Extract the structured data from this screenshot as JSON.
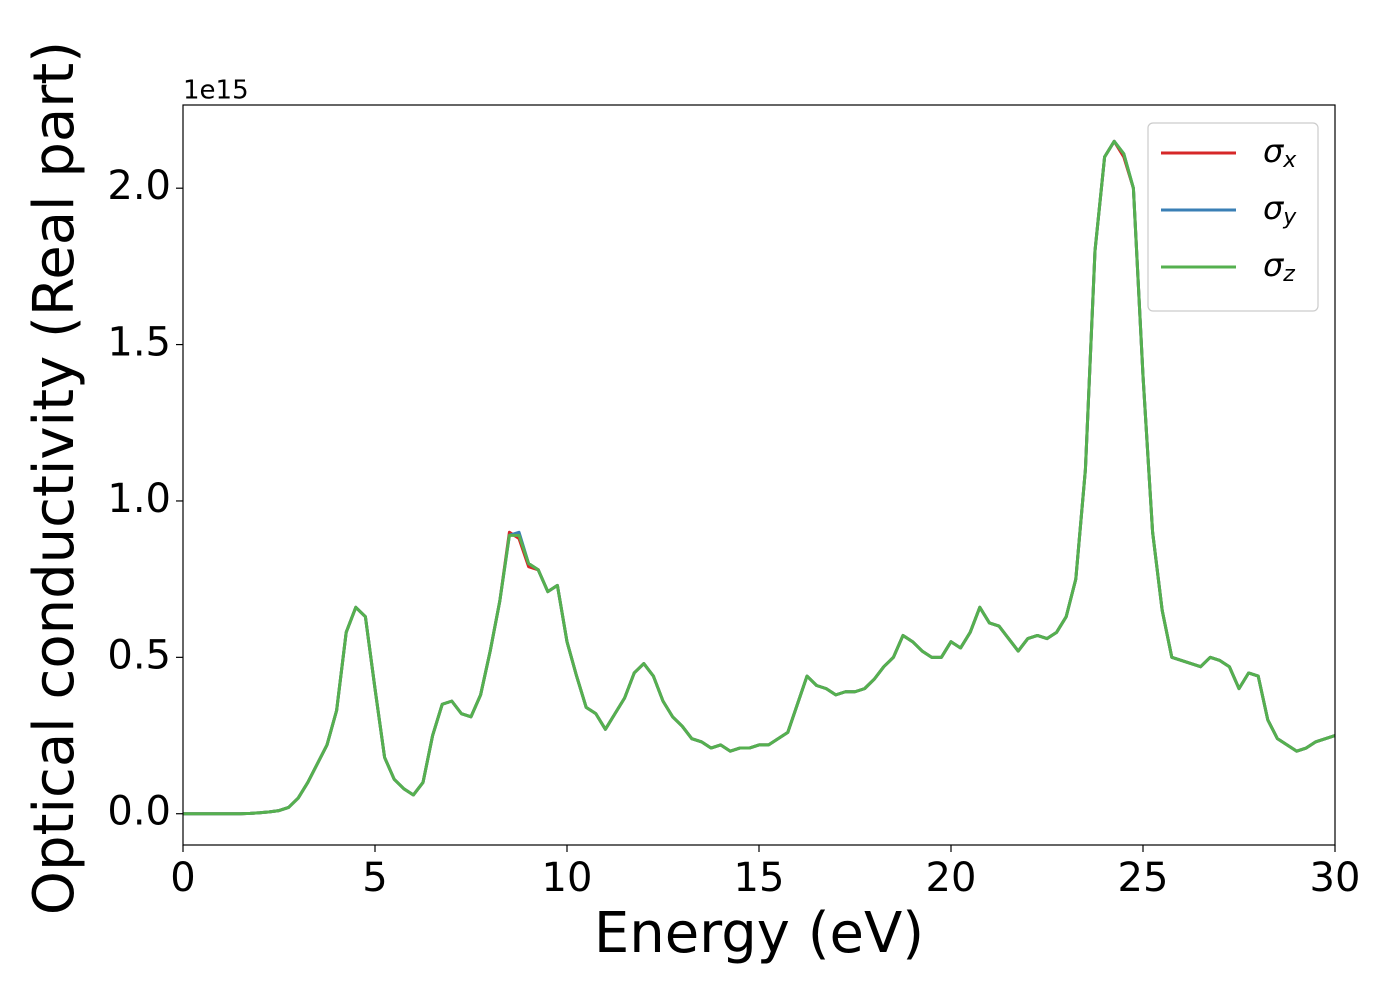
{
  "chart_data": {
    "type": "line",
    "xlabel": "Energy (eV)",
    "ylabel": "Optical conductivity (Real part)",
    "y_offset_label": "1e15",
    "x": [
      0,
      0.25,
      0.5,
      0.75,
      1,
      1.25,
      1.5,
      1.75,
      2,
      2.25,
      2.5,
      2.75,
      3,
      3.25,
      3.5,
      3.75,
      4,
      4.25,
      4.5,
      4.75,
      5,
      5.25,
      5.5,
      5.75,
      6,
      6.25,
      6.5,
      6.75,
      7,
      7.25,
      7.5,
      7.75,
      8,
      8.25,
      8.5,
      8.75,
      9,
      9.25,
      9.5,
      9.75,
      10,
      10.25,
      10.5,
      10.75,
      11,
      11.25,
      11.5,
      11.75,
      12,
      12.25,
      12.5,
      12.75,
      13,
      13.25,
      13.5,
      13.75,
      14,
      14.25,
      14.5,
      14.75,
      15,
      15.25,
      15.5,
      15.75,
      16,
      16.25,
      16.5,
      16.75,
      17,
      17.25,
      17.5,
      17.75,
      18,
      18.25,
      18.5,
      18.75,
      19,
      19.25,
      19.5,
      19.75,
      20,
      20.25,
      20.5,
      20.75,
      21,
      21.25,
      21.5,
      21.75,
      22,
      22.25,
      22.5,
      22.75,
      23,
      23.25,
      23.5,
      23.75,
      24,
      24.25,
      24.5,
      24.75,
      25,
      25.25,
      25.5,
      25.75,
      26,
      26.25,
      26.5,
      26.75,
      27,
      27.25,
      27.5,
      27.75,
      28,
      28.25,
      28.5,
      28.75,
      29,
      29.25,
      29.5,
      29.75,
      30
    ],
    "series": [
      {
        "name": "σx",
        "color": "#d62728",
        "values": [
          0,
          0,
          0,
          0,
          0,
          0,
          0,
          0.001,
          0.003,
          0.006,
          0.01,
          0.02,
          0.05,
          0.1,
          0.16,
          0.22,
          0.33,
          0.58,
          0.66,
          0.63,
          0.4,
          0.18,
          0.11,
          0.08,
          0.06,
          0.1,
          0.25,
          0.35,
          0.36,
          0.32,
          0.31,
          0.38,
          0.52,
          0.68,
          0.9,
          0.88,
          0.79,
          0.78,
          0.71,
          0.73,
          0.55,
          0.44,
          0.34,
          0.32,
          0.27,
          0.32,
          0.37,
          0.45,
          0.48,
          0.44,
          0.36,
          0.31,
          0.28,
          0.24,
          0.23,
          0.21,
          0.22,
          0.2,
          0.21,
          0.21,
          0.22,
          0.22,
          0.24,
          0.26,
          0.35,
          0.44,
          0.41,
          0.4,
          0.38,
          0.39,
          0.39,
          0.4,
          0.43,
          0.47,
          0.5,
          0.57,
          0.55,
          0.52,
          0.5,
          0.5,
          0.55,
          0.53,
          0.58,
          0.66,
          0.61,
          0.6,
          0.56,
          0.52,
          0.56,
          0.57,
          0.56,
          0.58,
          0.63,
          0.75,
          1.1,
          1.8,
          2.1,
          2.15,
          2.1,
          2.0,
          1.4,
          0.9,
          0.65,
          0.5,
          0.49,
          0.48,
          0.47,
          0.5,
          0.49,
          0.47,
          0.4,
          0.45,
          0.44,
          0.3,
          0.24,
          0.22,
          0.2,
          0.21,
          0.23,
          0.24,
          0.25
        ]
      },
      {
        "name": "σy",
        "color": "#3a7fb5",
        "values": [
          0,
          0,
          0,
          0,
          0,
          0,
          0,
          0.001,
          0.003,
          0.006,
          0.01,
          0.02,
          0.05,
          0.1,
          0.16,
          0.22,
          0.33,
          0.58,
          0.66,
          0.63,
          0.4,
          0.18,
          0.11,
          0.08,
          0.06,
          0.1,
          0.25,
          0.35,
          0.36,
          0.32,
          0.31,
          0.38,
          0.52,
          0.68,
          0.89,
          0.9,
          0.8,
          0.78,
          0.71,
          0.73,
          0.55,
          0.44,
          0.34,
          0.32,
          0.27,
          0.32,
          0.37,
          0.45,
          0.48,
          0.44,
          0.36,
          0.31,
          0.28,
          0.24,
          0.23,
          0.21,
          0.22,
          0.2,
          0.21,
          0.21,
          0.22,
          0.22,
          0.24,
          0.26,
          0.35,
          0.44,
          0.41,
          0.4,
          0.38,
          0.39,
          0.39,
          0.4,
          0.43,
          0.47,
          0.5,
          0.57,
          0.55,
          0.52,
          0.5,
          0.5,
          0.55,
          0.53,
          0.58,
          0.66,
          0.61,
          0.6,
          0.56,
          0.52,
          0.56,
          0.57,
          0.56,
          0.58,
          0.63,
          0.75,
          1.1,
          1.8,
          2.1,
          2.15,
          2.11,
          2.0,
          1.4,
          0.9,
          0.65,
          0.5,
          0.49,
          0.48,
          0.47,
          0.5,
          0.49,
          0.47,
          0.4,
          0.45,
          0.44,
          0.3,
          0.24,
          0.22,
          0.2,
          0.21,
          0.23,
          0.24,
          0.25
        ]
      },
      {
        "name": "σz",
        "color": "#55b04f",
        "values": [
          0,
          0,
          0,
          0,
          0,
          0,
          0,
          0.001,
          0.003,
          0.006,
          0.01,
          0.02,
          0.05,
          0.1,
          0.16,
          0.22,
          0.33,
          0.58,
          0.66,
          0.63,
          0.4,
          0.18,
          0.11,
          0.08,
          0.06,
          0.1,
          0.25,
          0.35,
          0.36,
          0.32,
          0.31,
          0.38,
          0.52,
          0.68,
          0.89,
          0.89,
          0.8,
          0.78,
          0.71,
          0.73,
          0.55,
          0.44,
          0.34,
          0.32,
          0.27,
          0.32,
          0.37,
          0.45,
          0.48,
          0.44,
          0.36,
          0.31,
          0.28,
          0.24,
          0.23,
          0.21,
          0.22,
          0.2,
          0.21,
          0.21,
          0.22,
          0.22,
          0.24,
          0.26,
          0.35,
          0.44,
          0.41,
          0.4,
          0.38,
          0.39,
          0.39,
          0.4,
          0.43,
          0.47,
          0.5,
          0.57,
          0.55,
          0.52,
          0.5,
          0.5,
          0.55,
          0.53,
          0.58,
          0.66,
          0.61,
          0.6,
          0.56,
          0.52,
          0.56,
          0.57,
          0.56,
          0.58,
          0.63,
          0.75,
          1.1,
          1.8,
          2.1,
          2.15,
          2.11,
          2.0,
          1.4,
          0.9,
          0.65,
          0.5,
          0.49,
          0.48,
          0.47,
          0.5,
          0.49,
          0.47,
          0.4,
          0.45,
          0.44,
          0.3,
          0.24,
          0.22,
          0.2,
          0.21,
          0.23,
          0.24,
          0.25
        ]
      }
    ],
    "xlim": [
      0,
      30
    ],
    "xticks": [
      0,
      5,
      10,
      15,
      20,
      25,
      30
    ],
    "ylim": [
      -0.1,
      2.266
    ],
    "yticks": [
      {
        "value": 0,
        "label": "0.0"
      },
      {
        "value": 0.5,
        "label": "0.5"
      },
      {
        "value": 1,
        "label": "1.0"
      },
      {
        "value": 1.5,
        "label": "1.5"
      },
      {
        "value": 2,
        "label": "2.0"
      }
    ],
    "legend": "upper right",
    "grid": false
  }
}
